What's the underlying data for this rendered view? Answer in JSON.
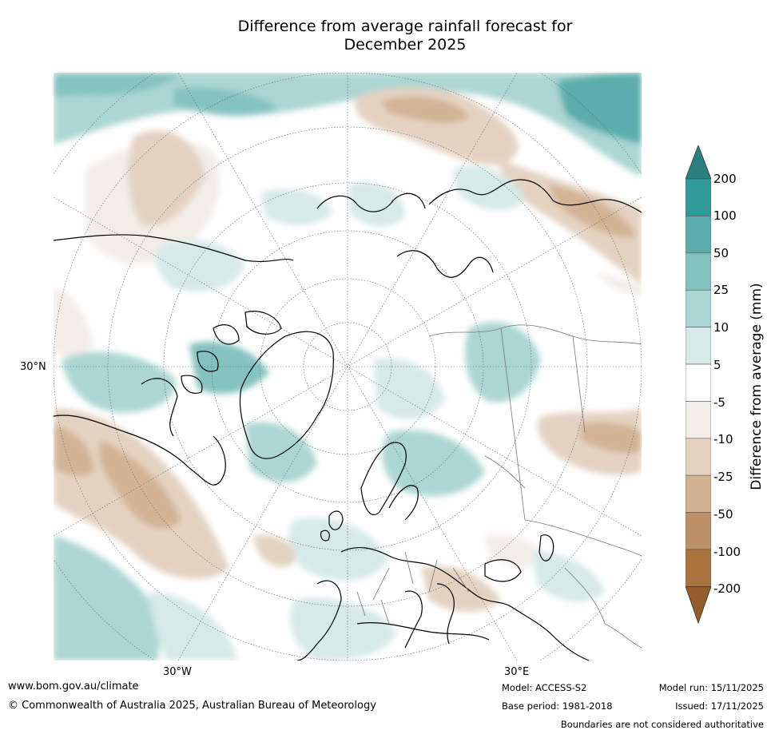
{
  "title_line1": "Difference from average rainfall forecast for",
  "title_line2": "December 2025",
  "map": {
    "lat_label": "30°N",
    "lon_labels": [
      "30°W",
      "30°E"
    ]
  },
  "legend": {
    "title": "Difference from average (mm)",
    "ticks": [
      "200",
      "100",
      "50",
      "25",
      "10",
      "5",
      "-5",
      "-10",
      "-25",
      "-50",
      "-100",
      "-200"
    ],
    "colors": [
      "#2a7f7f",
      "#2f9a98",
      "#5aadab",
      "#84c2bf",
      "#acd6d3",
      "#d6eae8",
      "#ffffff",
      "#f2ede7",
      "#e4d2c1",
      "#d2b394",
      "#bd9068",
      "#ab743f",
      "#925d2a"
    ]
  },
  "footer": {
    "website": "www.bom.gov.au/climate",
    "copyright": "© Commonwealth of Australia 2025, Australian Bureau of Meteorology",
    "model": "Model: ACCESS-S2",
    "base_period": "Base period: 1981-2018",
    "model_run": "Model run: 15/11/2025",
    "issued": "Issued: 17/11/2025",
    "disclaimer": "Boundaries are not considered authoritative"
  }
}
